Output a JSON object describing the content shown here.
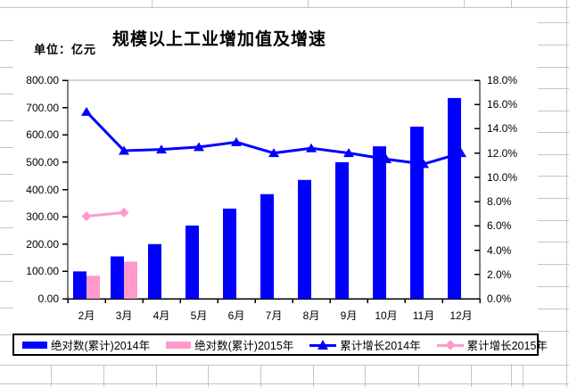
{
  "chart": {
    "title": "规模以上工业增加值及增速",
    "unit_label": "单位：亿元"
  },
  "legend": {
    "items": [
      {
        "label": "绝对数(累计)2014年",
        "swatch": "bar",
        "color": "#0000ff"
      },
      {
        "label": "绝对数(累计)2015年",
        "swatch": "bar",
        "color": "#ff99cc"
      },
      {
        "label": "累计增长2014年",
        "swatch": "line-triangle",
        "color": "#0000ff"
      },
      {
        "label": "累计增长2015年",
        "swatch": "line-diamond",
        "color": "#ff99cc"
      }
    ]
  },
  "chart_data": {
    "type": "combo-bar-line",
    "title": "规模以上工业增加值及增速",
    "unit_label": "单位：亿元",
    "categories": [
      "2月",
      "3月",
      "4月",
      "5月",
      "6月",
      "7月",
      "8月",
      "9月",
      "10月",
      "11月",
      "12月"
    ],
    "series": [
      {
        "name": "绝对数(累计)2014年",
        "type": "bar",
        "axis": "left",
        "color": "#0000ff",
        "values": [
          100,
          155,
          200,
          268,
          330,
          383,
          435,
          500,
          558,
          630,
          735
        ]
      },
      {
        "name": "绝对数(累计)2015年",
        "type": "bar",
        "axis": "left",
        "color": "#ff99cc",
        "values": [
          84,
          136,
          null,
          null,
          null,
          null,
          null,
          null,
          null,
          null,
          null
        ]
      },
      {
        "name": "累计增长2014年",
        "type": "line",
        "axis": "right",
        "color": "#0000ff",
        "marker": "triangle",
        "values": [
          15.4,
          12.2,
          12.3,
          12.5,
          12.9,
          12.0,
          12.4,
          12.0,
          11.5,
          11.1,
          12.0
        ]
      },
      {
        "name": "累计增长2015年",
        "type": "line",
        "axis": "right",
        "color": "#ff99cc",
        "marker": "diamond",
        "values": [
          6.8,
          7.1,
          null,
          null,
          null,
          null,
          null,
          null,
          null,
          null,
          null
        ]
      }
    ],
    "left_axis": {
      "min": 0,
      "max": 800,
      "step": 100,
      "tick_labels": [
        "800.00",
        "700.00",
        "600.00",
        "500.00",
        "400.00",
        "300.00",
        "200.00",
        "100.00",
        "0.00"
      ]
    },
    "right_axis": {
      "min": 0,
      "max": 18,
      "step": 2,
      "tick_labels": [
        "18.0%",
        "16.0%",
        "14.0%",
        "12.0%",
        "10.0%",
        "8.0%",
        "6.0%",
        "4.0%",
        "2.0%",
        "0.0%"
      ]
    },
    "grid": "off",
    "legend_position": "bottom"
  },
  "colors": {
    "series_2014": "#0000ff",
    "series_2015": "#ff99cc",
    "axis": "#000000",
    "plot_top_border": "#a6a6a6",
    "worksheet_grid": "#c4c4c4"
  }
}
